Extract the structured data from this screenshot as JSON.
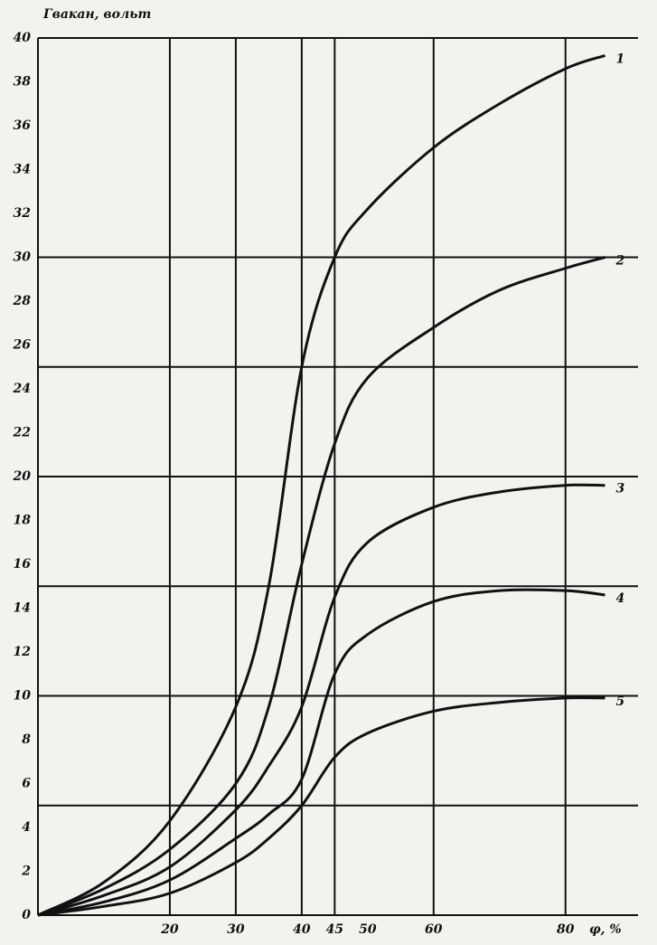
{
  "chart_data": {
    "type": "line",
    "y_label": "Гвакан, вольт",
    "x_label": "φ, %",
    "x": [
      0,
      10,
      20,
      30,
      35,
      40,
      45,
      50,
      60,
      70,
      80,
      86
    ],
    "series": [
      {
        "name": "1",
        "color": "#111111",
        "values": [
          0,
          1.5,
          4.3,
          9.5,
          15,
          25,
          30,
          32.2,
          35,
          37,
          38.6,
          39.2
        ]
      },
      {
        "name": "2",
        "color": "#111111",
        "values": [
          0,
          1.2,
          3,
          6,
          9.5,
          16,
          21.5,
          24.5,
          26.8,
          28.5,
          29.5,
          30
        ]
      },
      {
        "name": "3",
        "color": "#111111",
        "values": [
          0,
          0.9,
          2.2,
          4.8,
          6.8,
          9.5,
          14.5,
          17,
          18.6,
          19.3,
          19.6,
          19.6
        ]
      },
      {
        "name": "4",
        "color": "#111111",
        "values": [
          0,
          0.6,
          1.6,
          3.5,
          4.6,
          6.2,
          11,
          12.8,
          14.3,
          14.8,
          14.8,
          14.6
        ]
      },
      {
        "name": "5",
        "color": "#111111",
        "values": [
          0,
          0.4,
          1,
          2.4,
          3.5,
          5,
          7.2,
          8.3,
          9.3,
          9.7,
          9.9,
          9.9
        ]
      }
    ],
    "xlim": [
      0,
      91
    ],
    "ylim": [
      0,
      40
    ],
    "xticks": [
      20,
      30,
      40,
      45,
      50,
      60,
      80
    ],
    "yticks": [
      0,
      2,
      4,
      6,
      8,
      10,
      12,
      14,
      16,
      18,
      20,
      22,
      24,
      26,
      28,
      30,
      32,
      34,
      36,
      38,
      40
    ],
    "xgrid": [
      20,
      30,
      40,
      45,
      60,
      80
    ],
    "ygrid": [
      5,
      10,
      15,
      20,
      25,
      30,
      40
    ],
    "grid": true
  }
}
